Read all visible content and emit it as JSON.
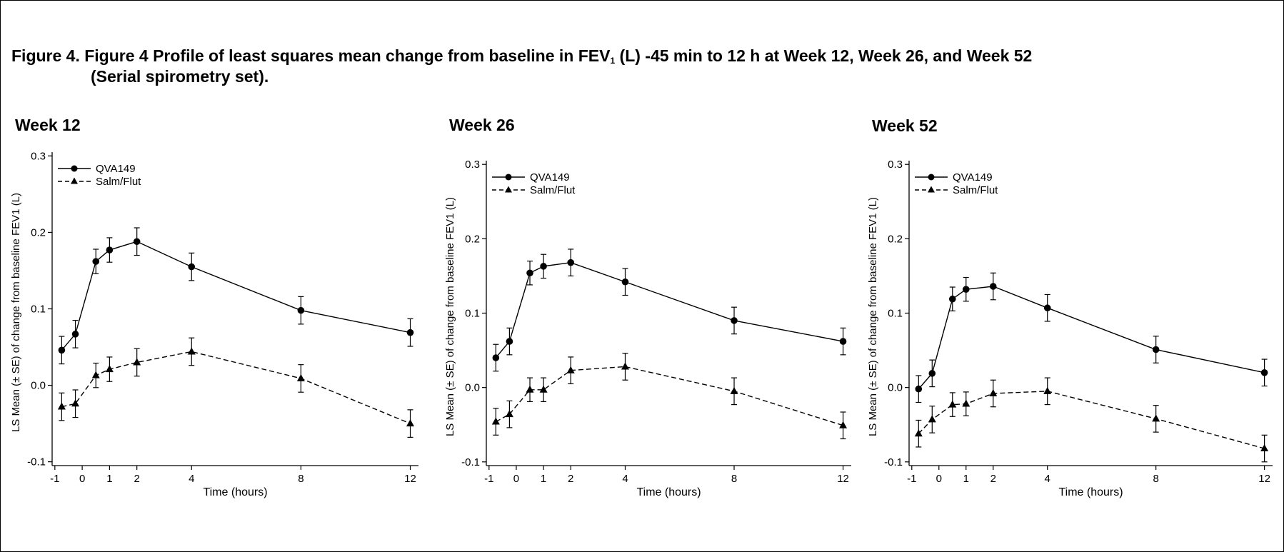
{
  "figure": {
    "caption_line1_pre": "Figure 4. Figure 4 Profile of least squares mean change from baseline in FEV",
    "caption_sub": "1",
    "caption_line1_post": " (L) -45 min to 12 h at Week 12, Week 26, and Week 52",
    "caption_line2": "(Serial spirometry set)."
  },
  "chart_data": [
    {
      "type": "line",
      "title": "Week 12",
      "xlabel": "Time (hours)",
      "ylabel": "LS Mean (± SE) of change from baseline FEV1 (L)",
      "xlim": [
        -1.1,
        12.3
      ],
      "ylim": [
        -0.105,
        0.305
      ],
      "xticks": [
        -1,
        0,
        1,
        2,
        4,
        8,
        12
      ],
      "xtick_labels": [
        "-1",
        "0",
        "1",
        "2",
        "4",
        "8",
        "12"
      ],
      "yticks": [
        -0.1,
        0.0,
        0.1,
        0.2,
        0.3
      ],
      "ytick_labels": [
        "-0.1",
        "0.0",
        "0.1",
        "0.2",
        "0.3"
      ],
      "legend_position": "top-left",
      "x": [
        -0.75,
        -0.25,
        0.5,
        1,
        2,
        4,
        8,
        12
      ],
      "series": [
        {
          "name": "QVA149",
          "marker": "circle",
          "dash": "solid",
          "values": [
            0.046,
            0.067,
            0.162,
            0.177,
            0.188,
            0.155,
            0.098,
            0.069
          ],
          "se": [
            0.018,
            0.018,
            0.016,
            0.016,
            0.018,
            0.018,
            0.018,
            0.018
          ]
        },
        {
          "name": "Salm/Flut",
          "marker": "triangle",
          "dash": "dashed",
          "values": [
            -0.028,
            -0.024,
            0.013,
            0.021,
            0.03,
            0.044,
            0.009,
            -0.05
          ],
          "se": [
            0.018,
            0.018,
            0.016,
            0.016,
            0.018,
            0.018,
            0.018,
            0.018
          ]
        }
      ]
    },
    {
      "type": "line",
      "title": "Week 26",
      "xlabel": "Time (hours)",
      "ylabel": "LS Mean (± SE) of change from baseline FEV1 (L)",
      "xlim": [
        -1.1,
        12.3
      ],
      "ylim": [
        -0.105,
        0.305
      ],
      "xticks": [
        -1,
        0,
        1,
        2,
        4,
        8,
        12
      ],
      "xtick_labels": [
        "-1",
        "0",
        "1",
        "2",
        "4",
        "8",
        "12"
      ],
      "yticks": [
        -0.1,
        0.0,
        0.1,
        0.2,
        0.3
      ],
      "ytick_labels": [
        "-0.1",
        "0.0",
        "0.1",
        "0.2",
        "0.3"
      ],
      "legend_position": "top-left",
      "x": [
        -0.75,
        -0.25,
        0.5,
        1,
        2,
        4,
        8,
        12
      ],
      "series": [
        {
          "name": "QVA149",
          "marker": "circle",
          "dash": "solid",
          "values": [
            0.04,
            0.062,
            0.154,
            0.163,
            0.168,
            0.142,
            0.09,
            0.062
          ],
          "se": [
            0.018,
            0.018,
            0.016,
            0.016,
            0.018,
            0.018,
            0.018,
            0.018
          ]
        },
        {
          "name": "Salm/Flut",
          "marker": "triangle",
          "dash": "dashed",
          "values": [
            -0.046,
            -0.036,
            -0.003,
            -0.003,
            0.023,
            0.028,
            -0.005,
            -0.051
          ],
          "se": [
            0.018,
            0.018,
            0.016,
            0.016,
            0.018,
            0.018,
            0.018,
            0.018
          ]
        }
      ]
    },
    {
      "type": "line",
      "title": "Week 52",
      "xlabel": "Time (hours)",
      "ylabel": "LS Mean (± SE) of change from baseline FEV1 (L)",
      "xlim": [
        -1.1,
        12.3
      ],
      "ylim": [
        -0.105,
        0.305
      ],
      "xticks": [
        -1,
        0,
        1,
        2,
        4,
        8,
        12
      ],
      "xtick_labels": [
        "-1",
        "0",
        "1",
        "2",
        "4",
        "8",
        "12"
      ],
      "yticks": [
        -0.1,
        0.0,
        0.1,
        0.2,
        0.3
      ],
      "ytick_labels": [
        "-0.1",
        "0.0",
        "0.1",
        "0.2",
        "0.3"
      ],
      "legend_position": "top-left",
      "x": [
        -0.75,
        -0.25,
        0.5,
        1,
        2,
        4,
        8,
        12
      ],
      "series": [
        {
          "name": "QVA149",
          "marker": "circle",
          "dash": "solid",
          "values": [
            -0.002,
            0.019,
            0.119,
            0.132,
            0.136,
            0.107,
            0.051,
            0.02
          ],
          "se": [
            0.018,
            0.018,
            0.016,
            0.016,
            0.018,
            0.018,
            0.018,
            0.018
          ]
        },
        {
          "name": "Salm/Flut",
          "marker": "triangle",
          "dash": "dashed",
          "values": [
            -0.062,
            -0.043,
            -0.023,
            -0.022,
            -0.008,
            -0.005,
            -0.042,
            -0.082
          ],
          "se": [
            0.018,
            0.018,
            0.016,
            0.016,
            0.018,
            0.018,
            0.018,
            0.018
          ]
        }
      ]
    }
  ]
}
